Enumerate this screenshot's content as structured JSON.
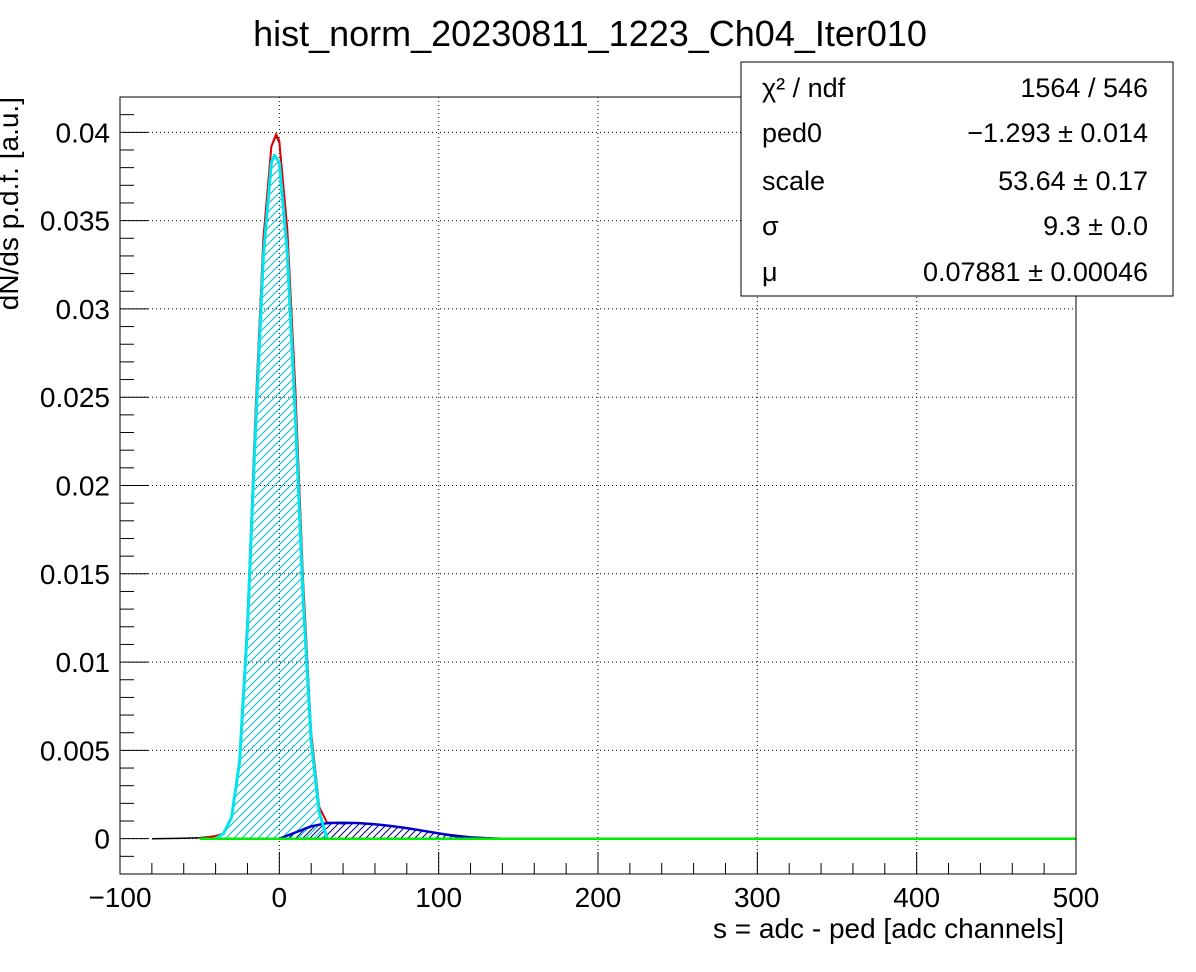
{
  "chart_data": {
    "type": "line",
    "title": "hist_norm_20230811_1223_Ch04_Iter010",
    "xlabel": "s = adc - ped [adc channels]",
    "ylabel": "dN/ds p.d.f. [a.u.]",
    "xlim": [
      -100,
      500
    ],
    "ylim": [
      -0.002,
      0.042
    ],
    "grid": true,
    "x_ticks": [
      -100,
      0,
      100,
      200,
      300,
      400,
      500
    ],
    "x_tick_labels": [
      "−100",
      "0",
      "100",
      "200",
      "300",
      "400",
      "500"
    ],
    "y_ticks": [
      0,
      0.005,
      0.01,
      0.015,
      0.02,
      0.025,
      0.03,
      0.035,
      0.04
    ],
    "y_tick_labels": [
      "0",
      "0.005",
      "0.01",
      "0.015",
      "0.02",
      "0.025",
      "0.03",
      "0.035",
      "0.04"
    ],
    "stats_box": {
      "position": "top-right",
      "rows": [
        {
          "label": "χ² / ndf",
          "value": "1564 / 546"
        },
        {
          "label": "ped0",
          "value": "−1.293 ± 0.014"
        },
        {
          "label": "scale",
          "value": "53.64  ± 0.17"
        },
        {
          "label": "σ",
          "value": "9.3 ± 0.0"
        },
        {
          "label": "μ",
          "value": "0.07881 ± 0.00046"
        }
      ]
    },
    "series": [
      {
        "color": "#000000",
        "x": [
          -80,
          -60,
          -50,
          -40,
          -35,
          -30,
          -25,
          -20,
          -15,
          -10,
          -5,
          -2,
          0,
          5,
          10,
          15,
          20,
          25,
          30,
          40,
          50,
          60,
          70,
          80,
          90,
          100,
          110,
          120,
          130,
          140
        ],
        "y": [
          0,
          3e-05,
          5e-05,
          0.00015,
          0.0003,
          0.0012,
          0.0045,
          0.0125,
          0.024,
          0.034,
          0.0392,
          0.0398,
          0.0394,
          0.0345,
          0.0255,
          0.0145,
          0.006,
          0.0018,
          0.0009,
          0.00085,
          0.0009,
          0.0008,
          0.0007,
          0.0006,
          0.00045,
          0.0003,
          0.0002,
          0.0001,
          5e-05,
          0
        ]
      },
      {
        "color": "#e00000",
        "x": [
          -50,
          -40,
          -35,
          -30,
          -25,
          -20,
          -15,
          -10,
          -5,
          -2,
          0,
          5,
          10,
          15,
          20,
          25,
          30,
          35,
          40
        ],
        "y": [
          0,
          0.00015,
          0.0003,
          0.0012,
          0.0045,
          0.0125,
          0.024,
          0.034,
          0.0392,
          0.0399,
          0.0395,
          0.0345,
          0.0255,
          0.0145,
          0.006,
          0.0018,
          0.0009,
          0.0009,
          0.0009
        ]
      },
      {
        "color": "#00e5ee",
        "x": [
          -40,
          -35,
          -30,
          -25,
          -20,
          -15,
          -10,
          -5,
          -3,
          0,
          5,
          10,
          15,
          20,
          25,
          30
        ],
        "y": [
          0,
          0.0003,
          0.0012,
          0.0043,
          0.012,
          0.023,
          0.033,
          0.0383,
          0.0387,
          0.0383,
          0.0332,
          0.024,
          0.0135,
          0.0055,
          0.0015,
          0
        ]
      },
      {
        "color": "#0000cc",
        "x": [
          0,
          10,
          20,
          30,
          40,
          50,
          60,
          70,
          80,
          90,
          100,
          110,
          120,
          130,
          140
        ],
        "y": [
          0,
          0.00035,
          0.0007,
          0.00088,
          0.0009,
          0.00088,
          0.00082,
          0.00072,
          0.0006,
          0.00045,
          0.0003,
          0.00015,
          6e-05,
          2e-05,
          0
        ]
      },
      {
        "color": "#00ee00",
        "x": [
          -50,
          500
        ],
        "y": [
          0,
          0
        ]
      }
    ]
  }
}
